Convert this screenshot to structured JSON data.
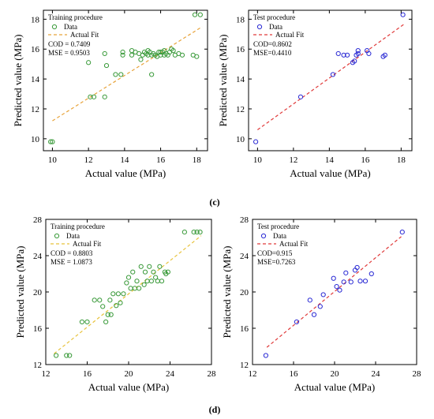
{
  "captions": [
    "(c)",
    "(d)"
  ],
  "chart_data": [
    {
      "type": "scatter",
      "title": "Training procedure",
      "xlabel": "Actual value (MPa)",
      "ylabel": "Predicted value (MPa)",
      "xlim": [
        9.5,
        18.6
      ],
      "ylim": [
        9.2,
        18.6
      ],
      "xticks": [
        10,
        12,
        14,
        16,
        18
      ],
      "yticks": [
        10,
        12,
        14,
        16,
        18
      ],
      "legend_position": "top-left",
      "marker_color": "#3a9a3a",
      "fit_color": "#e8a33a",
      "stats": [
        "COD = 0.7409",
        "MSE = 0.9503"
      ],
      "fit": {
        "name": "Actual Fit",
        "x": [
          10,
          18.3
        ],
        "y": [
          11.2,
          17.5
        ]
      },
      "series": [
        {
          "name": "Data",
          "x": [
            9.9,
            10.0,
            12.0,
            12.1,
            12.3,
            12.9,
            12.9,
            13.0,
            13.5,
            13.8,
            13.9,
            13.9,
            14.4,
            14.4,
            14.6,
            14.8,
            14.9,
            15.0,
            15.1,
            15.2,
            15.3,
            15.3,
            15.4,
            15.5,
            15.5,
            15.6,
            15.7,
            15.8,
            15.9,
            16.0,
            16.0,
            16.1,
            16.2,
            16.2,
            16.3,
            16.4,
            16.5,
            16.6,
            16.7,
            16.8,
            17.0,
            17.2,
            17.8,
            17.9,
            18.0,
            18.2
          ],
          "y": [
            9.8,
            9.8,
            15.1,
            12.8,
            12.8,
            12.8,
            15.7,
            14.9,
            14.3,
            14.3,
            15.6,
            15.8,
            15.6,
            15.9,
            15.8,
            15.7,
            15.3,
            15.6,
            15.8,
            15.7,
            15.9,
            15.6,
            15.8,
            14.3,
            15.6,
            15.7,
            15.6,
            15.5,
            15.8,
            15.6,
            15.8,
            15.8,
            15.9,
            15.6,
            15.7,
            15.6,
            15.8,
            16.0,
            15.9,
            15.6,
            15.7,
            15.6,
            15.6,
            18.3,
            15.5,
            18.3
          ]
        }
      ]
    },
    {
      "type": "scatter",
      "title": "Test procedure",
      "xlabel": "Actual value (MPa)",
      "ylabel": "Predicted value (MPa)",
      "xlim": [
        9.5,
        18.6
      ],
      "ylim": [
        9.2,
        18.6
      ],
      "xticks": [
        10,
        12,
        14,
        16,
        18
      ],
      "yticks": [
        10,
        12,
        14,
        16,
        18
      ],
      "legend_position": "top-left",
      "marker_color": "#2a2ad4",
      "fit_color": "#e03a3a",
      "stats": [
        "COD=0.8602",
        "MSE=0.4410"
      ],
      "fit": {
        "name": "Actual Fit",
        "x": [
          10,
          18.2
        ],
        "y": [
          10.6,
          17.7
        ]
      },
      "series": [
        {
          "name": "Data",
          "x": [
            9.9,
            12.4,
            14.2,
            14.5,
            14.8,
            15.0,
            15.3,
            15.4,
            15.5,
            15.6,
            15.6,
            16.1,
            16.2,
            17.0,
            17.1,
            18.1
          ],
          "y": [
            9.8,
            12.8,
            14.3,
            15.7,
            15.6,
            15.6,
            15.1,
            15.2,
            15.6,
            15.7,
            15.9,
            15.9,
            15.7,
            15.5,
            15.6,
            18.3
          ]
        }
      ]
    },
    {
      "type": "scatter",
      "title": "Training procedure",
      "xlabel": "Actual value (MPa)",
      "ylabel": "Predicted value (MPa)",
      "xlim": [
        12,
        28
      ],
      "ylim": [
        12,
        28
      ],
      "xticks": [
        12,
        16,
        20,
        24,
        28
      ],
      "yticks": [
        12,
        16,
        20,
        24,
        28
      ],
      "legend_position": "top-left",
      "marker_color": "#3a9a3a",
      "fit_color": "#e8c23a",
      "stats": [
        "COD = 0.8803",
        "MSE = 1.0873"
      ],
      "fit": {
        "name": "Actual Fit",
        "x": [
          12.8,
          27
        ],
        "y": [
          13.2,
          26.2
        ]
      },
      "series": [
        {
          "name": "Data",
          "x": [
            13.0,
            14.0,
            14.3,
            15.5,
            16.0,
            16.7,
            17.2,
            17.5,
            17.8,
            18.0,
            18.2,
            18.3,
            18.5,
            18.8,
            19.0,
            19.2,
            19.5,
            19.8,
            20.0,
            20.2,
            20.4,
            20.6,
            20.8,
            21.0,
            21.2,
            21.5,
            21.6,
            21.8,
            22.0,
            22.2,
            22.4,
            22.6,
            22.8,
            23.0,
            23.2,
            23.5,
            23.6,
            23.8,
            25.4,
            26.3,
            26.6,
            26.9
          ],
          "y": [
            13.0,
            13.0,
            13.0,
            16.7,
            16.7,
            19.1,
            19.1,
            18.4,
            16.7,
            17.5,
            19.1,
            17.5,
            19.8,
            18.5,
            19.8,
            18.8,
            19.8,
            21.0,
            21.6,
            20.4,
            22.2,
            20.4,
            21.2,
            20.4,
            22.8,
            20.8,
            22.2,
            21.2,
            22.8,
            21.2,
            22.2,
            21.6,
            21.2,
            22.8,
            21.2,
            22.2,
            22.0,
            22.2,
            26.6,
            26.6,
            26.6,
            26.6
          ]
        }
      ]
    },
    {
      "type": "scatter",
      "title": "Test procedure",
      "xlabel": "Actual value (MPa)",
      "ylabel": "Predicted value (MPa)",
      "xlim": [
        12,
        28
      ],
      "ylim": [
        12,
        28
      ],
      "xticks": [
        12,
        16,
        20,
        24,
        28
      ],
      "yticks": [
        12,
        16,
        20,
        24,
        28
      ],
      "legend_position": "top-left",
      "marker_color": "#2a2ad4",
      "fit_color": "#e03a3a",
      "stats": [
        "COD=0.915",
        "MSE=0.7263"
      ],
      "fit": {
        "name": "Actual Fit",
        "x": [
          13.4,
          26.5
        ],
        "y": [
          13.9,
          26.1
        ]
      },
      "series": [
        {
          "name": "Data",
          "x": [
            13.3,
            16.3,
            17.6,
            18.0,
            18.6,
            18.9,
            19.9,
            20.2,
            20.5,
            20.9,
            21.1,
            21.6,
            22.0,
            22.2,
            22.5,
            23.0,
            23.6,
            26.6
          ],
          "y": [
            13.0,
            16.7,
            19.1,
            17.5,
            18.4,
            19.7,
            21.5,
            20.6,
            20.2,
            21.1,
            22.1,
            21.1,
            22.4,
            22.7,
            21.2,
            21.2,
            22.0,
            26.6
          ]
        }
      ]
    }
  ]
}
